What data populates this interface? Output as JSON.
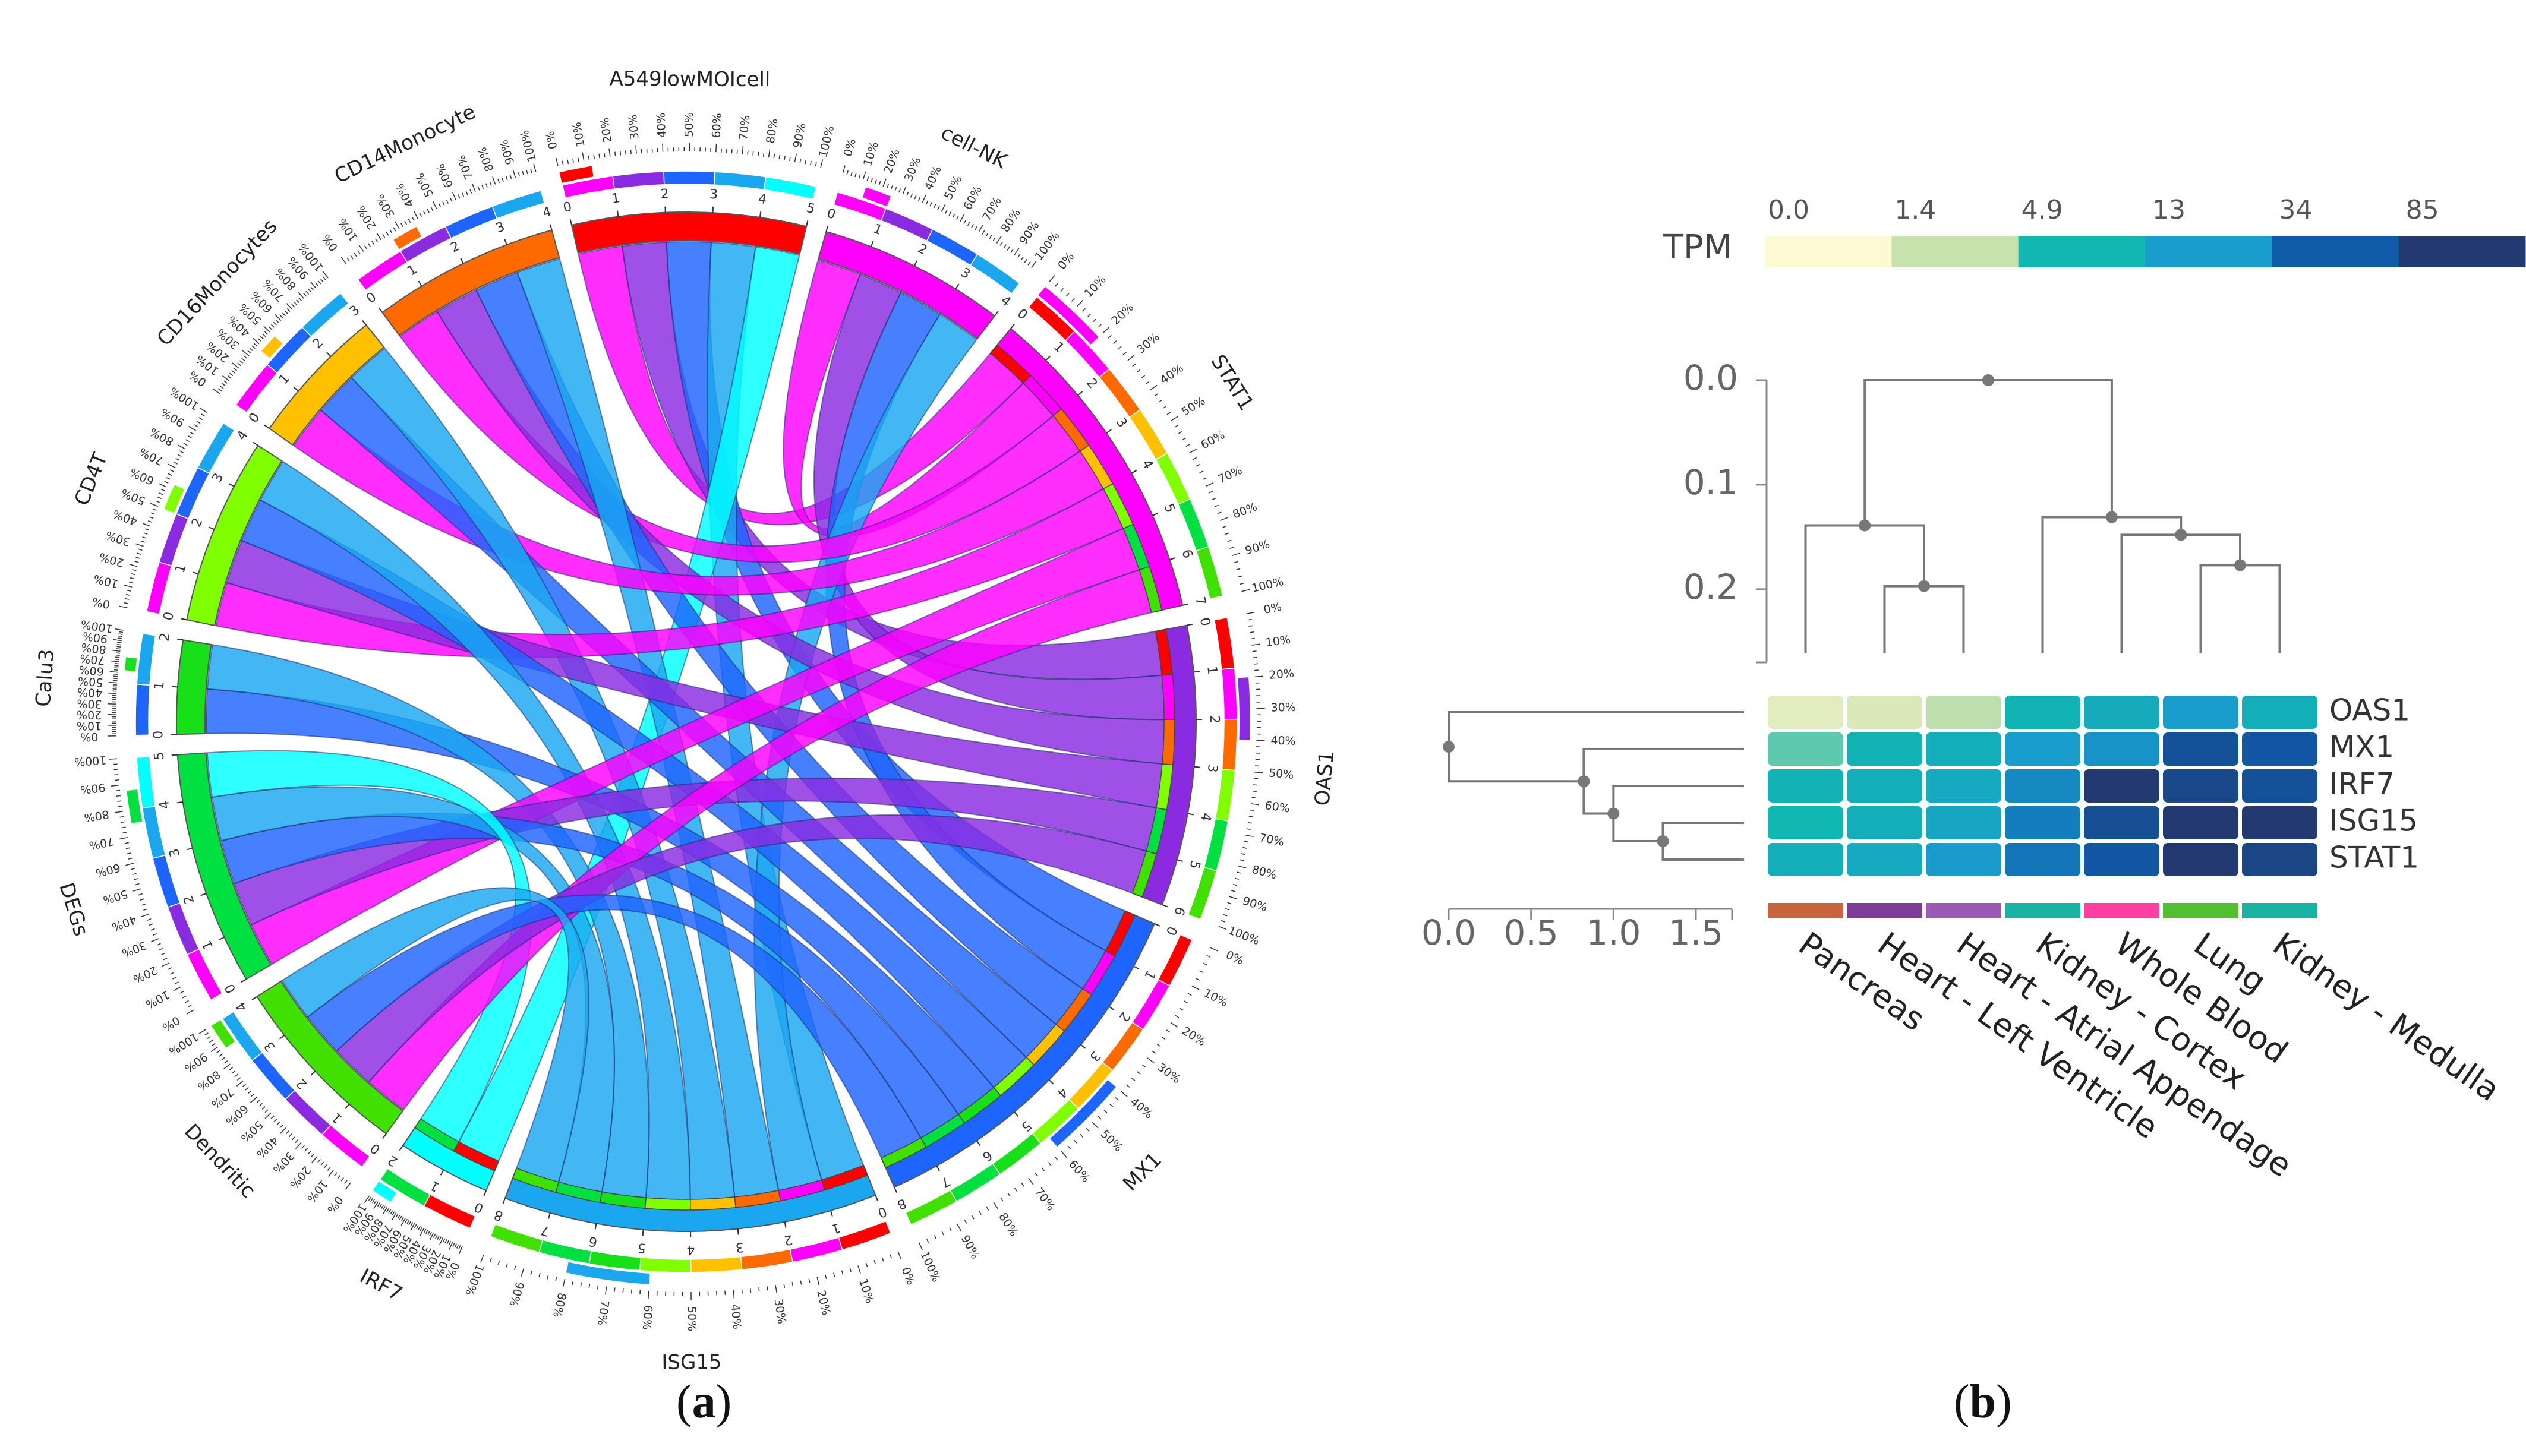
{
  "captions": {
    "a_open": "(",
    "a_letter": "a",
    "a_close": ")",
    "b_open": "(",
    "b_letter": "b",
    "b_close": ")"
  },
  "chart_data": [
    {
      "type": "chord",
      "panel": "a",
      "sectors": [
        {
          "name": "A549lowMOIcell",
          "max": 5
        },
        {
          "name": "cell-NK",
          "max": 4
        },
        {
          "name": "STAT1",
          "max": 7
        },
        {
          "name": "OAS1",
          "max": 6
        },
        {
          "name": "MX1",
          "max": 8
        },
        {
          "name": "ISG15",
          "max": 8
        },
        {
          "name": "IRF7",
          "max": 2
        },
        {
          "name": "Dendritic",
          "max": 4
        },
        {
          "name": "DEGs",
          "max": 5
        },
        {
          "name": "Calu3",
          "max": 2
        },
        {
          "name": "CD4T",
          "max": 4
        },
        {
          "name": "CD16Monocytes",
          "max": 3
        },
        {
          "name": "CD14Monocyte",
          "max": 4
        }
      ],
      "source_colors": {
        "A549lowMOIcell": "#ff0000",
        "cell-NK": "#ff00ff",
        "CD14Monocyte": "#ff6a00",
        "CD16Monocytes": "#ffc000",
        "CD4T": "#80ff00",
        "Calu3": "#18e018",
        "DEGs": "#00e040",
        "Dendritic": "#40e000"
      },
      "target_colors": {
        "STAT1": "#ff00ff",
        "OAS1": "#8a2be2",
        "MX1": "#1e64ff",
        "ISG15": "#1aa7f0",
        "IRF7": "#00ffff"
      },
      "links": [
        {
          "from": "A549lowMOIcell",
          "to": "STAT1",
          "value": 1
        },
        {
          "from": "A549lowMOIcell",
          "to": "OAS1",
          "value": 1
        },
        {
          "from": "A549lowMOIcell",
          "to": "MX1",
          "value": 1
        },
        {
          "from": "A549lowMOIcell",
          "to": "ISG15",
          "value": 1
        },
        {
          "from": "A549lowMOIcell",
          "to": "IRF7",
          "value": 1
        },
        {
          "from": "cell-NK",
          "to": "STAT1",
          "value": 1
        },
        {
          "from": "cell-NK",
          "to": "OAS1",
          "value": 1
        },
        {
          "from": "cell-NK",
          "to": "MX1",
          "value": 1
        },
        {
          "from": "cell-NK",
          "to": "ISG15",
          "value": 1
        },
        {
          "from": "CD14Monocyte",
          "to": "STAT1",
          "value": 1
        },
        {
          "from": "CD14Monocyte",
          "to": "OAS1",
          "value": 1
        },
        {
          "from": "CD14Monocyte",
          "to": "MX1",
          "value": 1
        },
        {
          "from": "CD14Monocyte",
          "to": "ISG15",
          "value": 1
        },
        {
          "from": "CD16Monocytes",
          "to": "STAT1",
          "value": 1
        },
        {
          "from": "CD16Monocytes",
          "to": "MX1",
          "value": 1
        },
        {
          "from": "CD16Monocytes",
          "to": "ISG15",
          "value": 1
        },
        {
          "from": "CD4T",
          "to": "STAT1",
          "value": 1
        },
        {
          "from": "CD4T",
          "to": "OAS1",
          "value": 1
        },
        {
          "from": "CD4T",
          "to": "MX1",
          "value": 1
        },
        {
          "from": "CD4T",
          "to": "ISG15",
          "value": 1
        },
        {
          "from": "Calu3",
          "to": "MX1",
          "value": 1
        },
        {
          "from": "Calu3",
          "to": "ISG15",
          "value": 1
        },
        {
          "from": "DEGs",
          "to": "STAT1",
          "value": 1
        },
        {
          "from": "DEGs",
          "to": "OAS1",
          "value": 1
        },
        {
          "from": "DEGs",
          "to": "MX1",
          "value": 1
        },
        {
          "from": "DEGs",
          "to": "ISG15",
          "value": 1
        },
        {
          "from": "DEGs",
          "to": "IRF7",
          "value": 1
        },
        {
          "from": "Dendritic",
          "to": "STAT1",
          "value": 1
        },
        {
          "from": "Dendritic",
          "to": "OAS1",
          "value": 1
        },
        {
          "from": "Dendritic",
          "to": "MX1",
          "value": 1
        },
        {
          "from": "Dendritic",
          "to": "ISG15",
          "value": 1
        }
      ],
      "percent_ticks": [
        "0%",
        "10%",
        "20%",
        "30%",
        "40%",
        "50%",
        "60%",
        "70%",
        "80%",
        "90%",
        "100%"
      ]
    },
    {
      "type": "heatmap",
      "panel": "b",
      "rows": [
        "OAS1",
        "MX1",
        "IRF7",
        "ISG15",
        "STAT1"
      ],
      "columns": [
        "Pancreas",
        "Heart - Left Ventricle",
        "Heart - Atrial Appendage",
        "Kidney - Cortex",
        "Whole Blood",
        "Lung",
        "Kidney - Medulla"
      ],
      "column_colors": [
        "#c8643c",
        "#7d3c98",
        "#9b59b6",
        "#17b3a3",
        "#ff3f9f",
        "#50c030",
        "#17b3a3"
      ],
      "values_tpm": [
        [
          0.9,
          1.3,
          1.6,
          6,
          9,
          13,
          8
        ],
        [
          4,
          6,
          8,
          13,
          16,
          50,
          40
        ],
        [
          6,
          8,
          10,
          20,
          130,
          70,
          50
        ],
        [
          5,
          8,
          12,
          25,
          55,
          120,
          90
        ],
        [
          8,
          10,
          14,
          30,
          40,
          95,
          75
        ]
      ],
      "colorbar": {
        "label": "TPM",
        "tick_labels": [
          "0.0",
          "1.4",
          "4.9",
          "13",
          "34",
          "85"
        ],
        "colors": [
          "#fdf9d3",
          "#c7e2ad",
          "#11b7b1",
          "#199dcd",
          "#0f5ba8",
          "#233a70"
        ]
      },
      "column_dendrogram": {
        "axis_ticks": [
          "0.0",
          "0.1",
          "0.2"
        ],
        "axis_range": [
          0.0,
          0.27
        ],
        "merges": [
          {
            "a": 1,
            "b": 2,
            "height": 0.197
          },
          {
            "a": 0,
            "b": "1-2",
            "height": 0.139
          },
          {
            "a": 5,
            "b": 6,
            "height": 0.177
          },
          {
            "a": 4,
            "b": "5-6",
            "height": 0.148
          },
          {
            "a": 3,
            "b": "4-6",
            "height": 0.131
          },
          {
            "a": "0-2",
            "b": "3-6",
            "height": 0.0
          }
        ]
      },
      "row_dendrogram": {
        "axis_ticks": [
          "0.0",
          "0.5",
          "1.0",
          "1.5"
        ],
        "axis_range": [
          0.0,
          1.72
        ],
        "merges": [
          {
            "a": 3,
            "b": 4,
            "height": 1.3
          },
          {
            "a": 2,
            "b": "3-4",
            "height": 1.0
          },
          {
            "a": 1,
            "b": "2-4",
            "height": 0.82
          },
          {
            "a": 0,
            "b": "1-4",
            "height": 0.0
          }
        ]
      }
    }
  ]
}
